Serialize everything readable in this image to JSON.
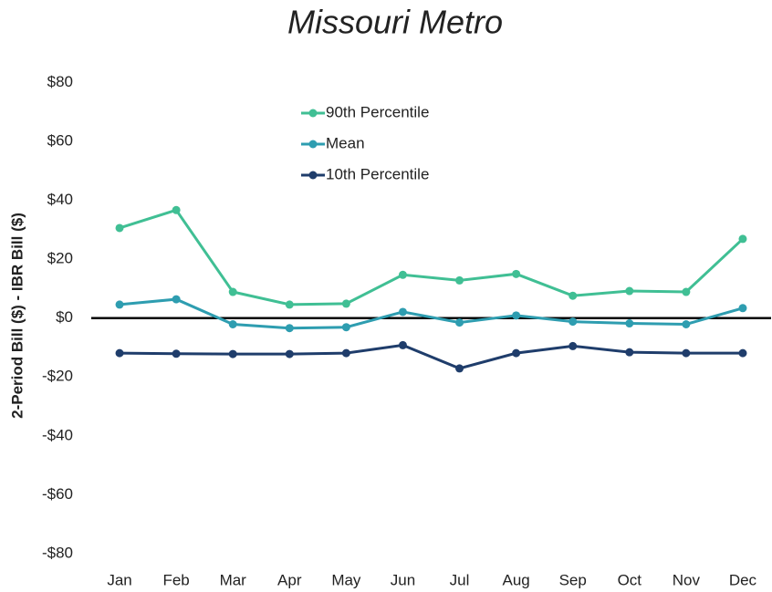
{
  "chart_data": {
    "type": "line",
    "title": "Missouri Metro",
    "y_label": "2-Period Bill ($) - IBR Bill ($)",
    "categories": [
      "Jan",
      "Feb",
      "Mar",
      "Apr",
      "May",
      "Jun",
      "Jul",
      "Aug",
      "Sep",
      "Oct",
      "Nov",
      "Dec"
    ],
    "series": [
      {
        "name": "90th Percentile",
        "color": "#40bf94",
        "values": [
          30.6,
          36.7,
          8.9,
          4.6,
          4.9,
          14.7,
          12.8,
          15,
          7.6,
          9.2,
          8.9,
          26.9
        ]
      },
      {
        "name": "Mean",
        "color": "#2e9db0",
        "values": [
          4.6,
          6.4,
          -2.1,
          -3.4,
          -3.1,
          2.1,
          -1.5,
          0.9,
          -1.2,
          -1.8,
          -2.1,
          3.4
        ]
      },
      {
        "name": "10th Percentile",
        "color": "#1f3d6b",
        "values": [
          -11.9,
          -12.1,
          -12.2,
          -12.2,
          -11.9,
          -9.2,
          -17.1,
          -11.9,
          -9.5,
          -11.6,
          -11.9,
          -11.9
        ]
      }
    ],
    "ylim": [
      -85,
      87
    ],
    "yticks": [
      {
        "value": -80,
        "label": "-$80"
      },
      {
        "value": -60,
        "label": "-$60"
      },
      {
        "value": -40,
        "label": "-$40"
      },
      {
        "value": -20,
        "label": "-$20"
      },
      {
        "value": 0,
        "label": "$0"
      },
      {
        "value": 20,
        "label": "$20"
      },
      {
        "value": 40,
        "label": "$40"
      },
      {
        "value": 60,
        "label": "$60"
      },
      {
        "value": 80,
        "label": "$80"
      }
    ],
    "grid": false,
    "legend": "upper center"
  }
}
